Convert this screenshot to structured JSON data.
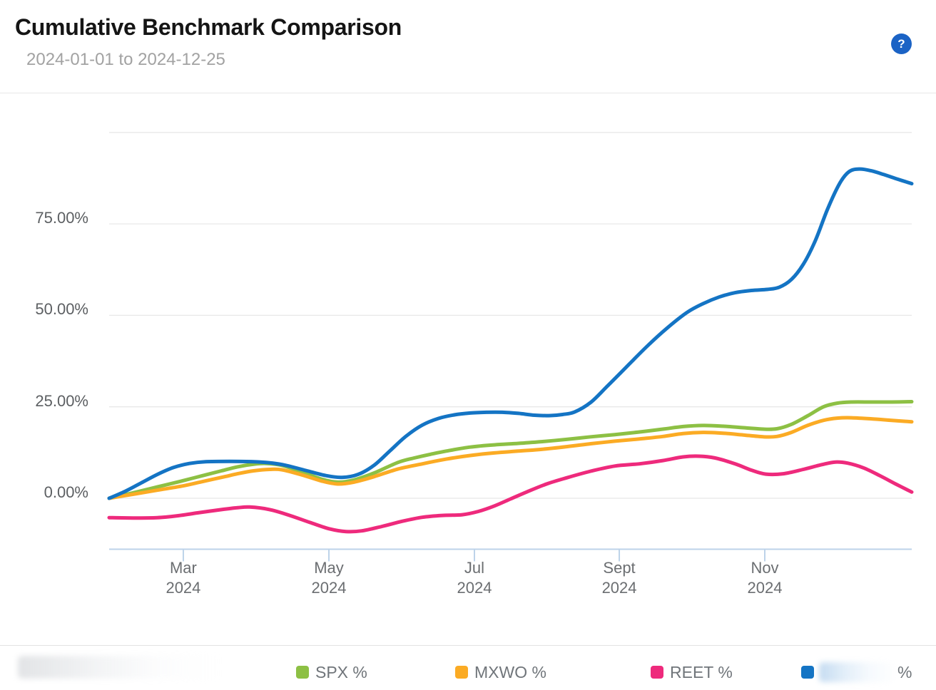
{
  "header": {
    "title": "Cumulative Benchmark Comparison",
    "date_range": "2024-01-01 to 2024-12-25",
    "help_label": "?"
  },
  "colors": {
    "spx_green": "#8dc044",
    "mxwo_orange": "#fbab24",
    "reet_pink": "#ee2a7c",
    "benchmark_blue": "#1474c4",
    "help_button_blue": "#1b63c5",
    "gridline": "#e8e8e8",
    "axis_blue_gray": "#bdd3e9",
    "axis_text_gray": "#6b6e71"
  },
  "chart_data": {
    "type": "line",
    "title": "Cumulative Benchmark Comparison",
    "date_range_start": "2024-01-01",
    "date_range_end": "2024-12-25",
    "grid": true,
    "legend_position": "bottom",
    "y_axis": {
      "unit": "percent",
      "tick_labels": [
        "75.00%",
        "50.00%",
        "25.00%",
        "0.00%"
      ],
      "tick_values": [
        75,
        50,
        25,
        0
      ],
      "grid_values": [
        0,
        25,
        50,
        75,
        100
      ],
      "visible_range": [
        -14,
        100
      ]
    },
    "x_axis": {
      "tick_labels": [
        {
          "month": "Mar",
          "year": "2024",
          "pos": 0.0924
        },
        {
          "month": "May",
          "year": "2024",
          "pos": 0.2738
        },
        {
          "month": "Jul",
          "year": "2024",
          "pos": 0.4551
        },
        {
          "month": "Sept",
          "year": "2024",
          "pos": 0.6356
        },
        {
          "month": "Nov",
          "year": "2024",
          "pos": 0.8169
        }
      ]
    },
    "series": [
      {
        "name": "SPX %",
        "color": "#8dc044",
        "points": [
          [
            0,
            0
          ],
          [
            0.03,
            1.5
          ],
          [
            0.06,
            3.1
          ],
          [
            0.09,
            4.7
          ],
          [
            0.115,
            6.1
          ],
          [
            0.14,
            7.5
          ],
          [
            0.16,
            8.6
          ],
          [
            0.18,
            9.3
          ],
          [
            0.195,
            9.5
          ],
          [
            0.215,
            9.0
          ],
          [
            0.24,
            7.2
          ],
          [
            0.265,
            5.2
          ],
          [
            0.285,
            4.4
          ],
          [
            0.305,
            5.0
          ],
          [
            0.33,
            6.9
          ],
          [
            0.36,
            9.8
          ],
          [
            0.38,
            11.0
          ],
          [
            0.4,
            12.0
          ],
          [
            0.42,
            12.9
          ],
          [
            0.45,
            14.0
          ],
          [
            0.48,
            14.6
          ],
          [
            0.51,
            15.0
          ],
          [
            0.54,
            15.5
          ],
          [
            0.57,
            16.1
          ],
          [
            0.6,
            16.8
          ],
          [
            0.63,
            17.4
          ],
          [
            0.66,
            18.1
          ],
          [
            0.69,
            18.9
          ],
          [
            0.715,
            19.6
          ],
          [
            0.74,
            19.9
          ],
          [
            0.765,
            19.7
          ],
          [
            0.79,
            19.3
          ],
          [
            0.815,
            18.9
          ],
          [
            0.832,
            19.0
          ],
          [
            0.85,
            20.2
          ],
          [
            0.87,
            22.5
          ],
          [
            0.89,
            25.0
          ],
          [
            0.907,
            26.0
          ],
          [
            0.925,
            26.3
          ],
          [
            0.95,
            26.3
          ],
          [
            0.975,
            26.3
          ],
          [
            1,
            26.4
          ]
        ]
      },
      {
        "name": "MXWO %",
        "color": "#fbab24",
        "points": [
          [
            0,
            0
          ],
          [
            0.03,
            1.1
          ],
          [
            0.06,
            2.2
          ],
          [
            0.09,
            3.3
          ],
          [
            0.115,
            4.5
          ],
          [
            0.14,
            5.7
          ],
          [
            0.16,
            6.7
          ],
          [
            0.18,
            7.5
          ],
          [
            0.2,
            7.9
          ],
          [
            0.215,
            7.8
          ],
          [
            0.24,
            6.4
          ],
          [
            0.265,
            4.7
          ],
          [
            0.285,
            3.9
          ],
          [
            0.305,
            4.4
          ],
          [
            0.33,
            5.9
          ],
          [
            0.36,
            8.0
          ],
          [
            0.39,
            9.4
          ],
          [
            0.42,
            10.7
          ],
          [
            0.45,
            11.7
          ],
          [
            0.48,
            12.4
          ],
          [
            0.51,
            12.9
          ],
          [
            0.54,
            13.4
          ],
          [
            0.57,
            14.1
          ],
          [
            0.6,
            14.9
          ],
          [
            0.63,
            15.6
          ],
          [
            0.66,
            16.2
          ],
          [
            0.69,
            16.9
          ],
          [
            0.715,
            17.7
          ],
          [
            0.74,
            18.0
          ],
          [
            0.765,
            17.8
          ],
          [
            0.79,
            17.3
          ],
          [
            0.815,
            16.8
          ],
          [
            0.832,
            16.9
          ],
          [
            0.85,
            18.0
          ],
          [
            0.87,
            19.9
          ],
          [
            0.89,
            21.3
          ],
          [
            0.907,
            21.9
          ],
          [
            0.925,
            22.0
          ],
          [
            0.95,
            21.7
          ],
          [
            0.975,
            21.3
          ],
          [
            1,
            20.9
          ]
        ]
      },
      {
        "name": "REET %",
        "color": "#ee2a7c",
        "points": [
          [
            0,
            -5.3
          ],
          [
            0.03,
            -5.4
          ],
          [
            0.06,
            -5.3
          ],
          [
            0.085,
            -4.8
          ],
          [
            0.11,
            -4.0
          ],
          [
            0.14,
            -3.1
          ],
          [
            0.16,
            -2.6
          ],
          [
            0.175,
            -2.4
          ],
          [
            0.2,
            -3.1
          ],
          [
            0.225,
            -4.7
          ],
          [
            0.25,
            -6.6
          ],
          [
            0.275,
            -8.4
          ],
          [
            0.295,
            -9.1
          ],
          [
            0.315,
            -8.9
          ],
          [
            0.34,
            -7.7
          ],
          [
            0.365,
            -6.3
          ],
          [
            0.39,
            -5.2
          ],
          [
            0.415,
            -4.7
          ],
          [
            0.44,
            -4.5
          ],
          [
            0.46,
            -3.6
          ],
          [
            0.48,
            -2.1
          ],
          [
            0.5,
            -0.2
          ],
          [
            0.52,
            1.7
          ],
          [
            0.545,
            3.9
          ],
          [
            0.57,
            5.6
          ],
          [
            0.6,
            7.4
          ],
          [
            0.63,
            8.8
          ],
          [
            0.66,
            9.4
          ],
          [
            0.69,
            10.3
          ],
          [
            0.715,
            11.3
          ],
          [
            0.735,
            11.5
          ],
          [
            0.755,
            11.0
          ],
          [
            0.78,
            9.4
          ],
          [
            0.8,
            7.7
          ],
          [
            0.818,
            6.6
          ],
          [
            0.84,
            6.7
          ],
          [
            0.865,
            7.9
          ],
          [
            0.888,
            9.2
          ],
          [
            0.905,
            9.9
          ],
          [
            0.92,
            9.6
          ],
          [
            0.94,
            8.3
          ],
          [
            0.96,
            6.2
          ],
          [
            0.98,
            3.9
          ],
          [
            1,
            1.7
          ]
        ]
      },
      {
        "name": "%",
        "label_redacted": true,
        "color": "#1474c4",
        "points": [
          [
            0,
            0
          ],
          [
            0.02,
            1.9
          ],
          [
            0.04,
            4.2
          ],
          [
            0.06,
            6.5
          ],
          [
            0.08,
            8.4
          ],
          [
            0.1,
            9.5
          ],
          [
            0.12,
            10.0
          ],
          [
            0.15,
            10.1
          ],
          [
            0.18,
            10.0
          ],
          [
            0.2,
            9.7
          ],
          [
            0.22,
            9.0
          ],
          [
            0.245,
            7.6
          ],
          [
            0.27,
            6.2
          ],
          [
            0.29,
            5.7
          ],
          [
            0.31,
            6.5
          ],
          [
            0.33,
            9.0
          ],
          [
            0.35,
            13.0
          ],
          [
            0.37,
            17.0
          ],
          [
            0.39,
            20.0
          ],
          [
            0.41,
            21.8
          ],
          [
            0.43,
            22.8
          ],
          [
            0.45,
            23.3
          ],
          [
            0.47,
            23.5
          ],
          [
            0.49,
            23.5
          ],
          [
            0.51,
            23.2
          ],
          [
            0.53,
            22.7
          ],
          [
            0.55,
            22.6
          ],
          [
            0.565,
            22.9
          ],
          [
            0.58,
            23.6
          ],
          [
            0.6,
            26.2
          ],
          [
            0.62,
            30.5
          ],
          [
            0.645,
            36.0
          ],
          [
            0.67,
            41.5
          ],
          [
            0.695,
            46.5
          ],
          [
            0.72,
            50.8
          ],
          [
            0.74,
            53.2
          ],
          [
            0.76,
            55.0
          ],
          [
            0.78,
            56.2
          ],
          [
            0.8,
            56.8
          ],
          [
            0.82,
            57.1
          ],
          [
            0.835,
            57.7
          ],
          [
            0.85,
            59.8
          ],
          [
            0.865,
            64.0
          ],
          [
            0.88,
            70.5
          ],
          [
            0.895,
            79.0
          ],
          [
            0.91,
            86.0
          ],
          [
            0.922,
            89.3
          ],
          [
            0.935,
            90.0
          ],
          [
            0.95,
            89.5
          ],
          [
            0.965,
            88.5
          ],
          [
            0.98,
            87.4
          ],
          [
            1,
            86.0
          ]
        ]
      }
    ]
  },
  "legend": {
    "items": [
      {
        "label": "SPX %"
      },
      {
        "label": "MXWO %"
      },
      {
        "label": "REET %"
      },
      {
        "label": "%",
        "redacted": true
      }
    ]
  }
}
